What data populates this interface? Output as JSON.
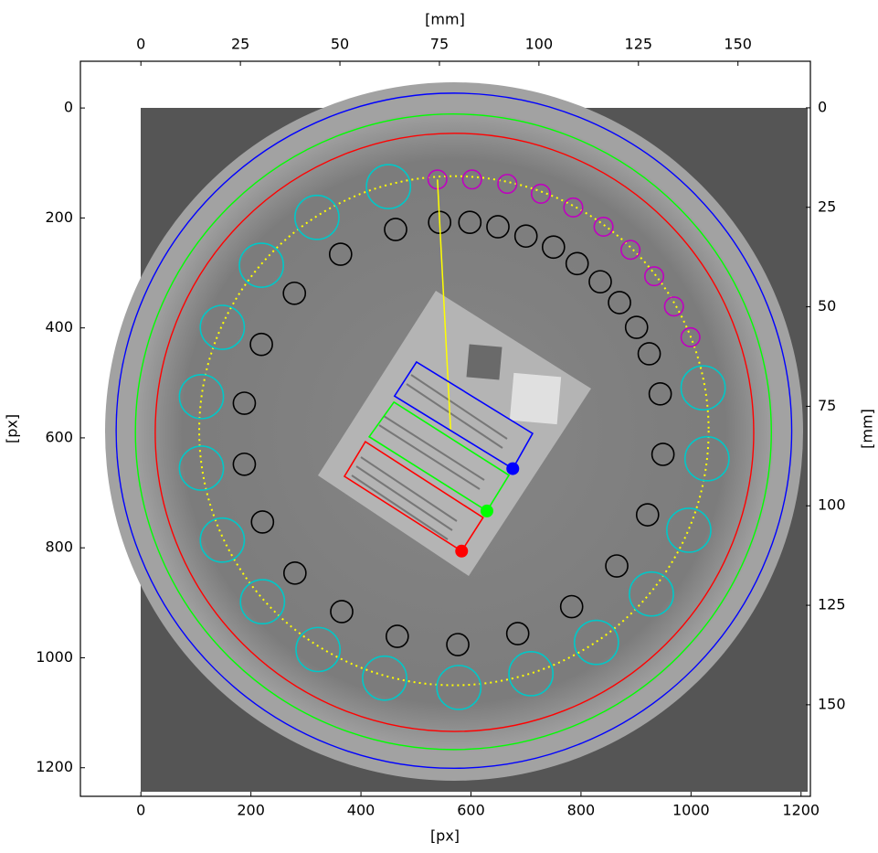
{
  "chart_data": {
    "type": "image",
    "xlabel": "[px]",
    "ylabel": "[px]",
    "x2label": "[mm]",
    "y2label": "[mm]",
    "xlim": [
      -110,
      1217
    ],
    "ylim": [
      1252,
      -85
    ],
    "xticks": [
      0,
      200,
      400,
      600,
      800,
      1000,
      1200
    ],
    "yticks": [
      0,
      200,
      400,
      600,
      800,
      1000,
      1200
    ],
    "x2lim": [
      -15.2,
      168.2
    ],
    "y2lim": [
      173,
      -11.7
    ],
    "x2ticks": [
      0,
      25,
      50,
      75,
      100,
      125,
      150
    ],
    "y2ticks": [
      0,
      25,
      50,
      75,
      100,
      125,
      150
    ],
    "rings": [
      {
        "color": "#0000ff",
        "center": [
          569,
          587
        ],
        "radius": 614,
        "style": "solid"
      },
      {
        "color": "#00ff00",
        "center": [
          568,
          589
        ],
        "radius": 578,
        "style": "solid"
      },
      {
        "color": "#ff0000",
        "center": [
          570,
          590
        ],
        "radius": 544,
        "style": "solid"
      },
      {
        "color": "#ffff00",
        "center": [
          569,
          587
        ],
        "radius": 463,
        "style": "dotted"
      }
    ],
    "roi_groups": [
      {
        "color": "#00c8c8",
        "radius": 40,
        "centers": [
          [
            450,
            143
          ],
          [
            320,
            199
          ],
          [
            219,
            286
          ],
          [
            148,
            399
          ],
          [
            110,
            525
          ],
          [
            110,
            655
          ],
          [
            148,
            786
          ],
          [
            221,
            898
          ],
          [
            322,
            985
          ],
          [
            443,
            1037
          ],
          [
            578,
            1054
          ],
          [
            709,
            1029
          ],
          [
            828,
            972
          ],
          [
            928,
            884
          ],
          [
            996,
            768
          ],
          [
            1029,
            638
          ],
          [
            1022,
            509
          ]
        ]
      },
      {
        "color": "#000000",
        "radius": 20,
        "centers": [
          [
            363,
            266
          ],
          [
            463,
            221
          ],
          [
            543,
            208
          ],
          [
            598,
            208
          ],
          [
            649,
            216
          ],
          [
            700,
            233
          ],
          [
            750,
            253
          ],
          [
            793,
            283
          ],
          [
            835,
            316
          ],
          [
            870,
            354
          ],
          [
            901,
            399
          ],
          [
            924,
            447
          ],
          [
            944,
            520
          ],
          [
            949,
            630
          ],
          [
            921,
            740
          ],
          [
            865,
            833
          ],
          [
            783,
            907
          ],
          [
            685,
            956
          ],
          [
            576,
            976
          ],
          [
            466,
            961
          ],
          [
            365,
            916
          ],
          [
            280,
            846
          ],
          [
            221,
            753
          ],
          [
            188,
            648
          ],
          [
            188,
            537
          ],
          [
            219,
            430
          ],
          [
            279,
            337
          ]
        ]
      },
      {
        "color": "#c000c0",
        "radius": 17,
        "centers": [
          [
            539,
            130
          ],
          [
            602,
            130
          ],
          [
            666,
            138
          ],
          [
            727,
            156
          ],
          [
            786,
            181
          ],
          [
            841,
            216
          ],
          [
            890,
            258
          ],
          [
            933,
            306
          ],
          [
            969,
            361
          ],
          [
            999,
            417
          ]
        ]
      }
    ],
    "boxes": [
      {
        "color": "#ff0000",
        "corners": [
          [
            408,
            607
          ],
          [
            370,
            670
          ],
          [
            583,
            806
          ],
          [
            622,
            745
          ]
        ],
        "point": [
          583,
          806
        ]
      },
      {
        "color": "#00ff00",
        "corners": [
          [
            460,
            535
          ],
          [
            415,
            598
          ],
          [
            629,
            733
          ],
          [
            669,
            668
          ]
        ],
        "point": [
          629,
          733
        ]
      },
      {
        "color": "#0000ff",
        "corners": [
          [
            501,
            462
          ],
          [
            461,
            524
          ],
          [
            676,
            656
          ],
          [
            712,
            592
          ]
        ],
        "point": [
          676,
          656
        ]
      }
    ],
    "pointer": {
      "color": "#ffff00",
      "from": [
        539,
        130
      ],
      "to": [
        563,
        585
      ]
    }
  }
}
